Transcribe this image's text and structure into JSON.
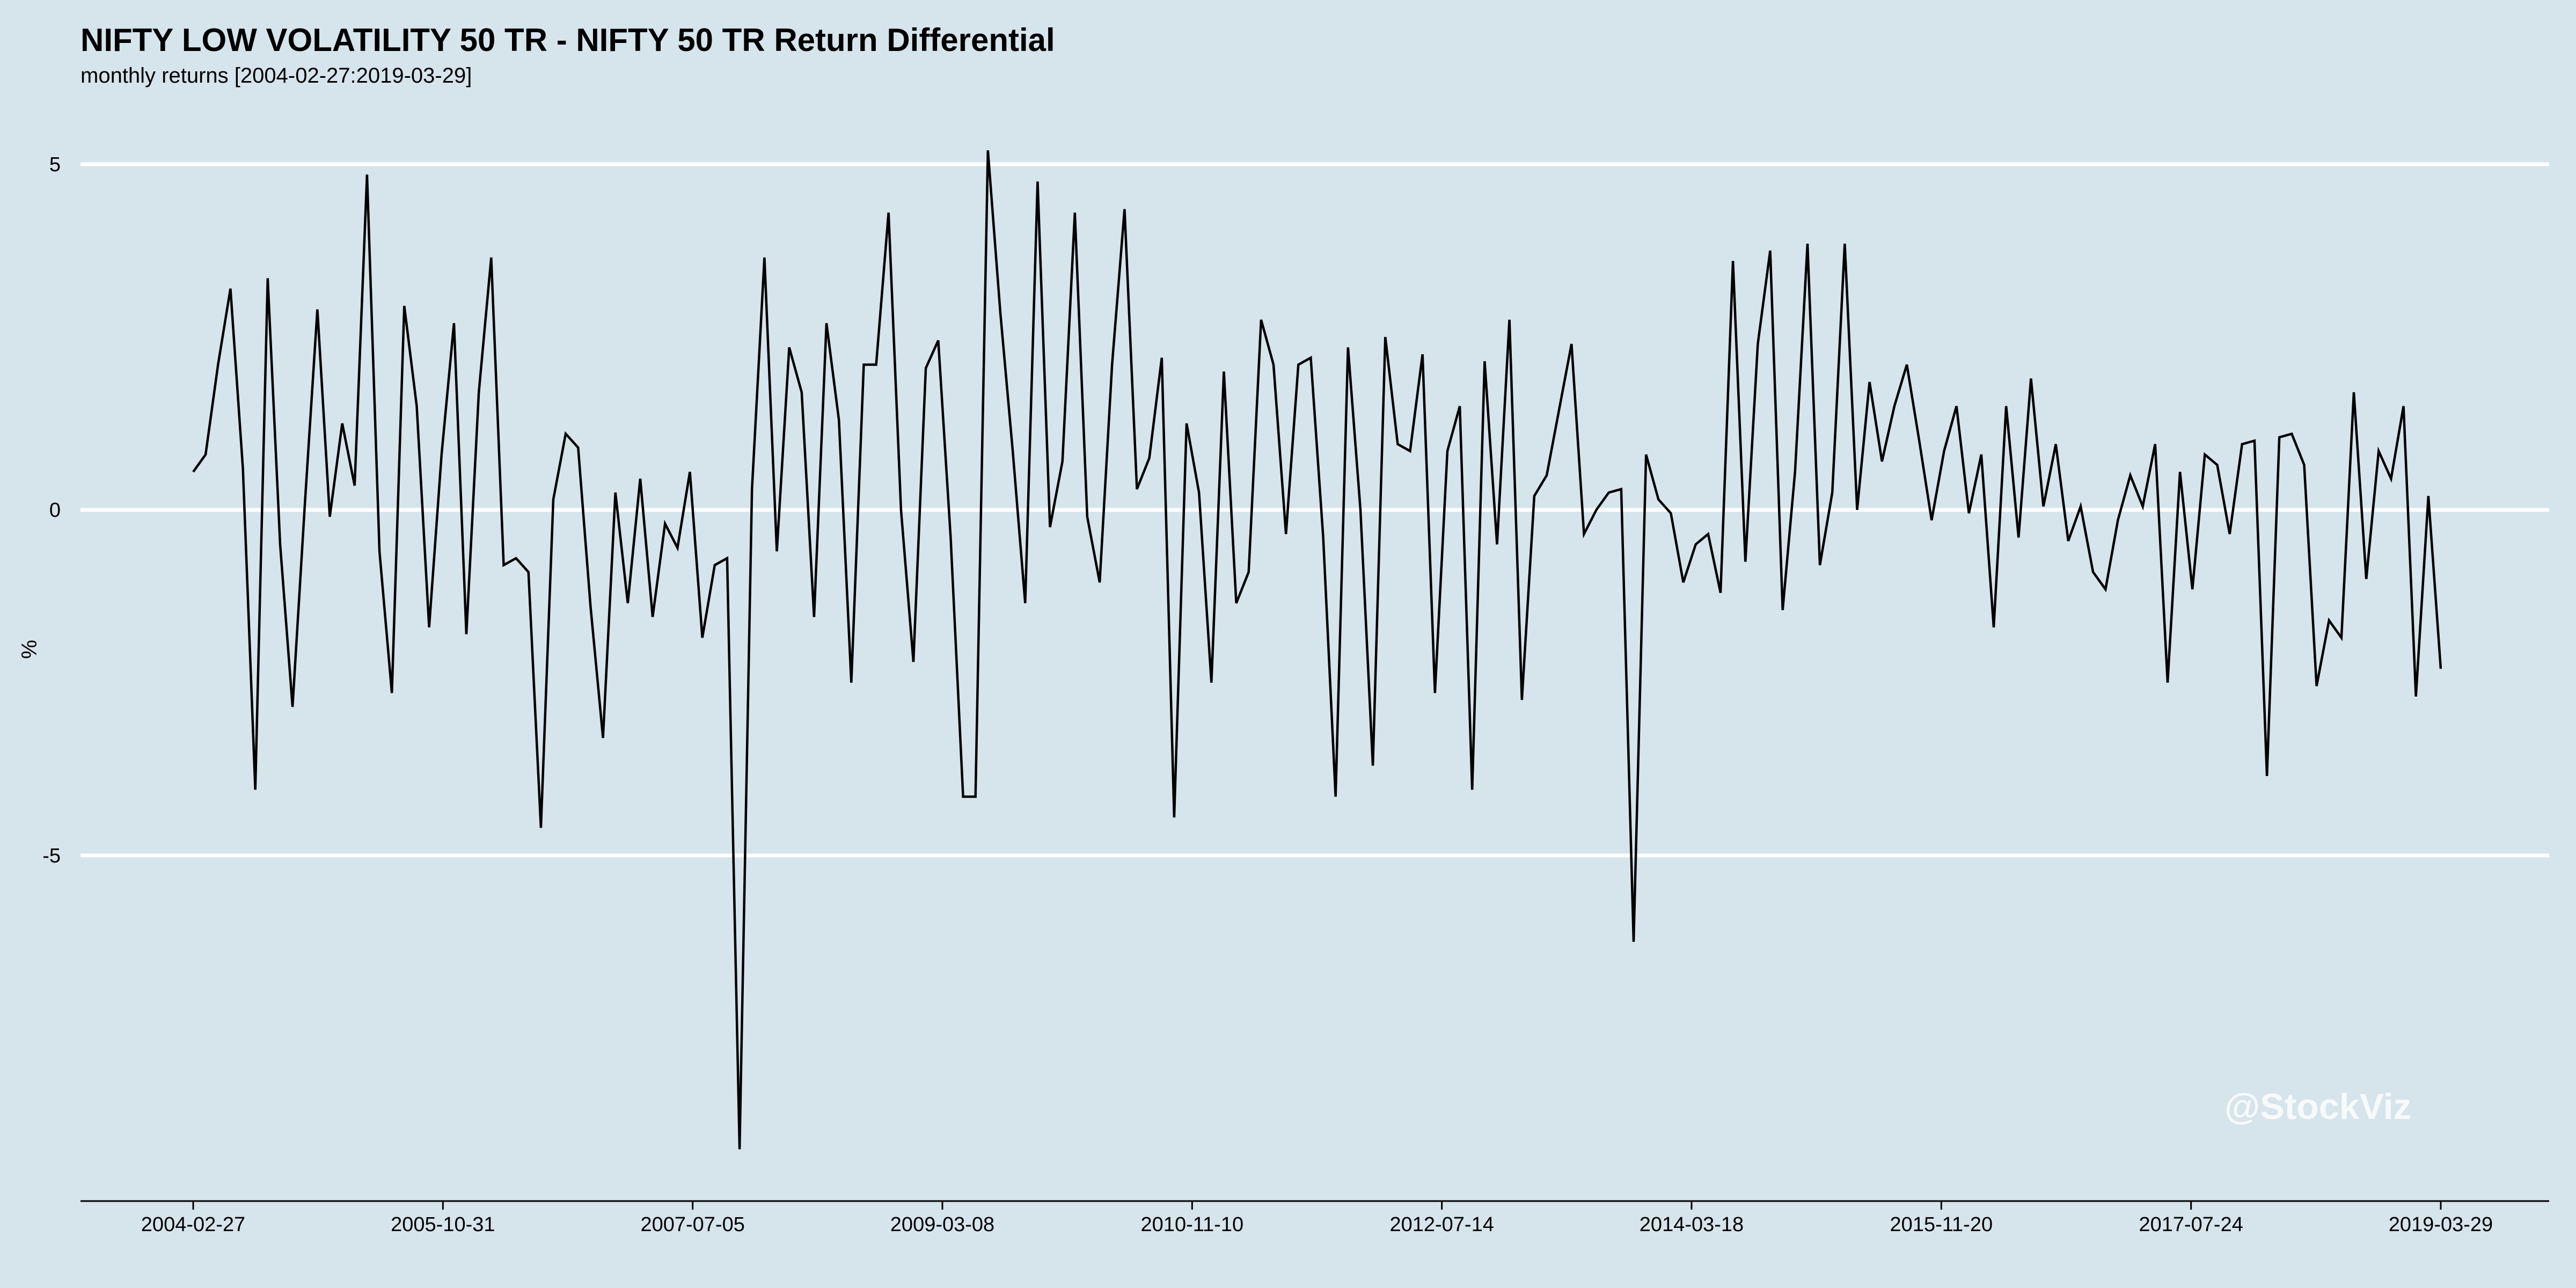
{
  "chart_data": {
    "type": "line",
    "title": "NIFTY LOW VOLATILITY 50 TR - NIFTY 50 TR Return Differential",
    "subtitle": "monthly returns [2004-02-27:2019-03-29]",
    "xlabel": "",
    "ylabel": "%",
    "ylim": [
      -10.0,
      5.2
    ],
    "y_ticks": [
      5,
      0,
      -5
    ],
    "y_tick_labels": [
      "5",
      "0",
      "-5"
    ],
    "x_tick_labels": [
      "2004-02-27",
      "2005-10-31",
      "2007-07-05",
      "2009-03-08",
      "2010-11-10",
      "2012-07-14",
      "2014-03-18",
      "2015-11-20",
      "2017-07-24",
      "2019-03-29"
    ],
    "grid": "horizontal",
    "watermark": "@StockViz",
    "series": [
      {
        "values": [
          0.55,
          0.8,
          2.1,
          3.2,
          0.6,
          -4.05,
          3.35,
          -0.5,
          -2.85,
          0.1,
          2.9,
          -0.1,
          1.25,
          0.35,
          4.85,
          -0.6,
          -2.65,
          2.95,
          1.5,
          -1.7,
          0.8,
          2.7,
          -1.8,
          1.7,
          3.65,
          -0.8,
          -0.7,
          -0.9,
          -4.6,
          0.15,
          1.1,
          0.9,
          -1.4,
          -3.3,
          0.25,
          -1.35,
          0.45,
          -1.55,
          -0.2,
          -0.55,
          0.55,
          -1.85,
          -0.8,
          -0.7,
          -9.25,
          0.3,
          3.65,
          -0.6,
          2.35,
          1.7,
          -1.55,
          2.7,
          1.3,
          -2.5,
          2.1,
          2.1,
          4.3,
          0.0,
          -2.2,
          2.05,
          2.45,
          -0.4,
          -4.15,
          -4.15,
          5.2,
          2.85,
          0.85,
          -1.35,
          4.75,
          -0.25,
          0.7,
          4.3,
          -0.1,
          -1.05,
          2.1,
          4.35,
          0.3,
          0.75,
          2.2,
          -4.45,
          1.25,
          0.25,
          -2.5,
          2.0,
          -1.35,
          -0.9,
          2.75,
          2.1,
          -0.35,
          2.1,
          2.2,
          -0.4,
          -4.15,
          2.35,
          0.0,
          -3.7,
          2.5,
          0.95,
          0.85,
          2.25,
          -2.65,
          0.85,
          1.5,
          -4.05,
          2.15,
          -0.5,
          2.75,
          -2.75,
          0.2,
          0.5,
          1.45,
          2.4,
          -0.35,
          0.0,
          0.25,
          0.3,
          -6.25,
          0.8,
          0.15,
          -0.05,
          -1.05,
          -0.5,
          -0.35,
          -1.2,
          3.6,
          -0.75,
          2.4,
          3.75,
          -1.45,
          0.55,
          3.85,
          -0.8,
          0.25,
          3.85,
          0.0,
          1.85,
          0.7,
          1.5,
          2.1,
          1.0,
          -0.15,
          0.85,
          1.5,
          -0.05,
          0.8,
          -1.7,
          1.5,
          -0.4,
          1.9,
          0.05,
          0.95,
          -0.45,
          0.05,
          -0.9,
          -1.15,
          -0.15,
          0.5,
          0.05,
          0.95,
          -2.5,
          0.55,
          -1.15,
          0.8,
          0.65,
          -0.35,
          0.95,
          1.0,
          -3.85,
          1.05,
          1.1,
          0.65,
          -2.55,
          -1.6,
          -1.85,
          1.7,
          -1.0,
          0.85,
          0.45,
          1.5,
          -2.7,
          0.2,
          -2.3
        ]
      }
    ]
  }
}
